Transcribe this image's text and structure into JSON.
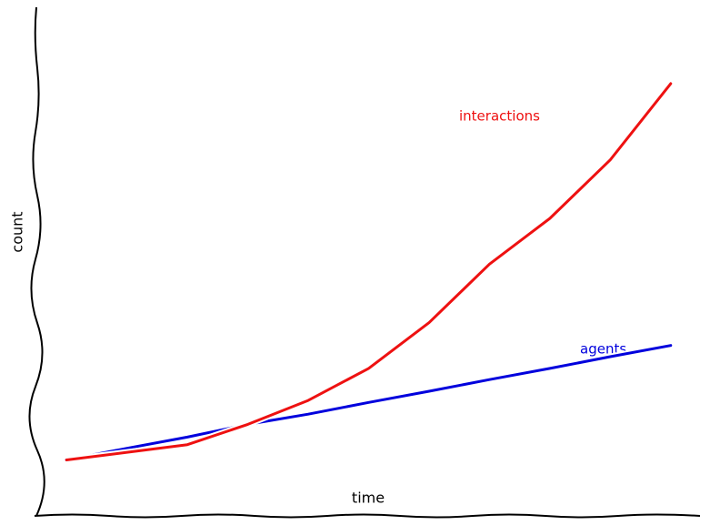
{
  "chart_data": {
    "type": "line",
    "xlabel": "time",
    "ylabel": "count",
    "x": [
      0,
      1,
      2,
      3,
      4,
      5,
      6,
      7,
      8,
      9,
      10
    ],
    "xlim": [
      -0.5,
      10.5
    ],
    "ylim": [
      0,
      100
    ],
    "series": [
      {
        "name": "agents",
        "color": "#0000dd",
        "values": [
          11,
          13.3,
          15.5,
          18,
          20,
          22.3,
          24.5,
          26.8,
          29,
          31.3,
          33.5
        ]
      },
      {
        "name": "interactions",
        "color": "#ee1111",
        "values": [
          11,
          12.5,
          14,
          18,
          22.7,
          29,
          38,
          49.5,
          58.5,
          70,
          85
        ]
      }
    ]
  }
}
